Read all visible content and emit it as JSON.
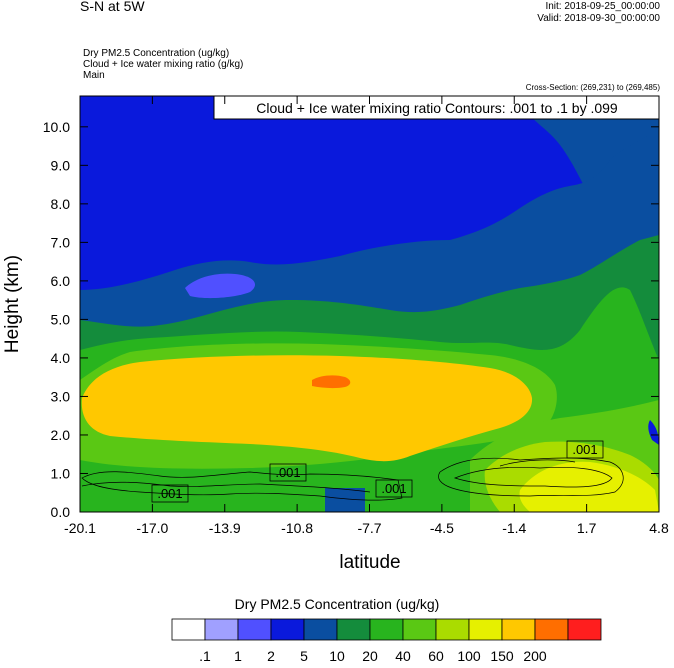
{
  "header": {
    "title": "S-N at 5W",
    "init": "Init: 2018-09-25_00:00:00",
    "valid": "Valid: 2018-09-30_00:00:00",
    "fields": [
      "Dry PM2.5 Concentration   (ug/kg)",
      "Cloud + Ice water mixing ratio   (g/kg)",
      "Main"
    ],
    "cross_section": "Cross-Section: (269,231) to (269,485)"
  },
  "chart_data": {
    "type": "heatmap",
    "xlabel": "latitude",
    "ylabel": "Height (km)",
    "x_ticks": [
      "-20.1",
      "-17.0",
      "-13.9",
      "-10.8",
      "-7.7",
      "-4.5",
      "-1.4",
      "1.7",
      "4.8"
    ],
    "y_ticks": [
      "0.0",
      "1.0",
      "2.0",
      "3.0",
      "4.0",
      "5.0",
      "6.0",
      "7.0",
      "8.0",
      "9.0",
      "10.0"
    ],
    "xlim": [
      -20.1,
      4.8
    ],
    "ylim": [
      0.0,
      10.8
    ],
    "contour_title": "Cloud + Ice water mixing ratio Contours: .001 to .1 by .099",
    "contour_labels": [
      ".001",
      ".001",
      ".001",
      ".001"
    ],
    "colorbar": {
      "title": "Dry PM2.5 Concentration  (ug/kg)",
      "labels": [
        ".1",
        "1",
        "2",
        "5",
        "10",
        "20",
        "40",
        "60",
        "100",
        "150",
        "200"
      ],
      "colors": [
        "#ffffff",
        "#a0a0ff",
        "#5050ff",
        "#0a19dc",
        "#0a4ea0",
        "#148c3c",
        "#28b41e",
        "#5ac814",
        "#aadc00",
        "#e6f000",
        "#ffc800",
        "#ff6e00",
        "#ff1e1e"
      ]
    },
    "regions": [
      {
        "level": "5",
        "note": "upper troposphere, 5.5-10.8 km"
      },
      {
        "level": "10",
        "note": "upper right, lat > -4"
      },
      {
        "level": "20-40",
        "note": "bands 1-5 km"
      },
      {
        "level": "100-150",
        "note": "plume 1.3-4 km, lat -20 to -5"
      },
      {
        "level": "200",
        "note": "core near 3.4 km, lat -8.5"
      }
    ]
  }
}
